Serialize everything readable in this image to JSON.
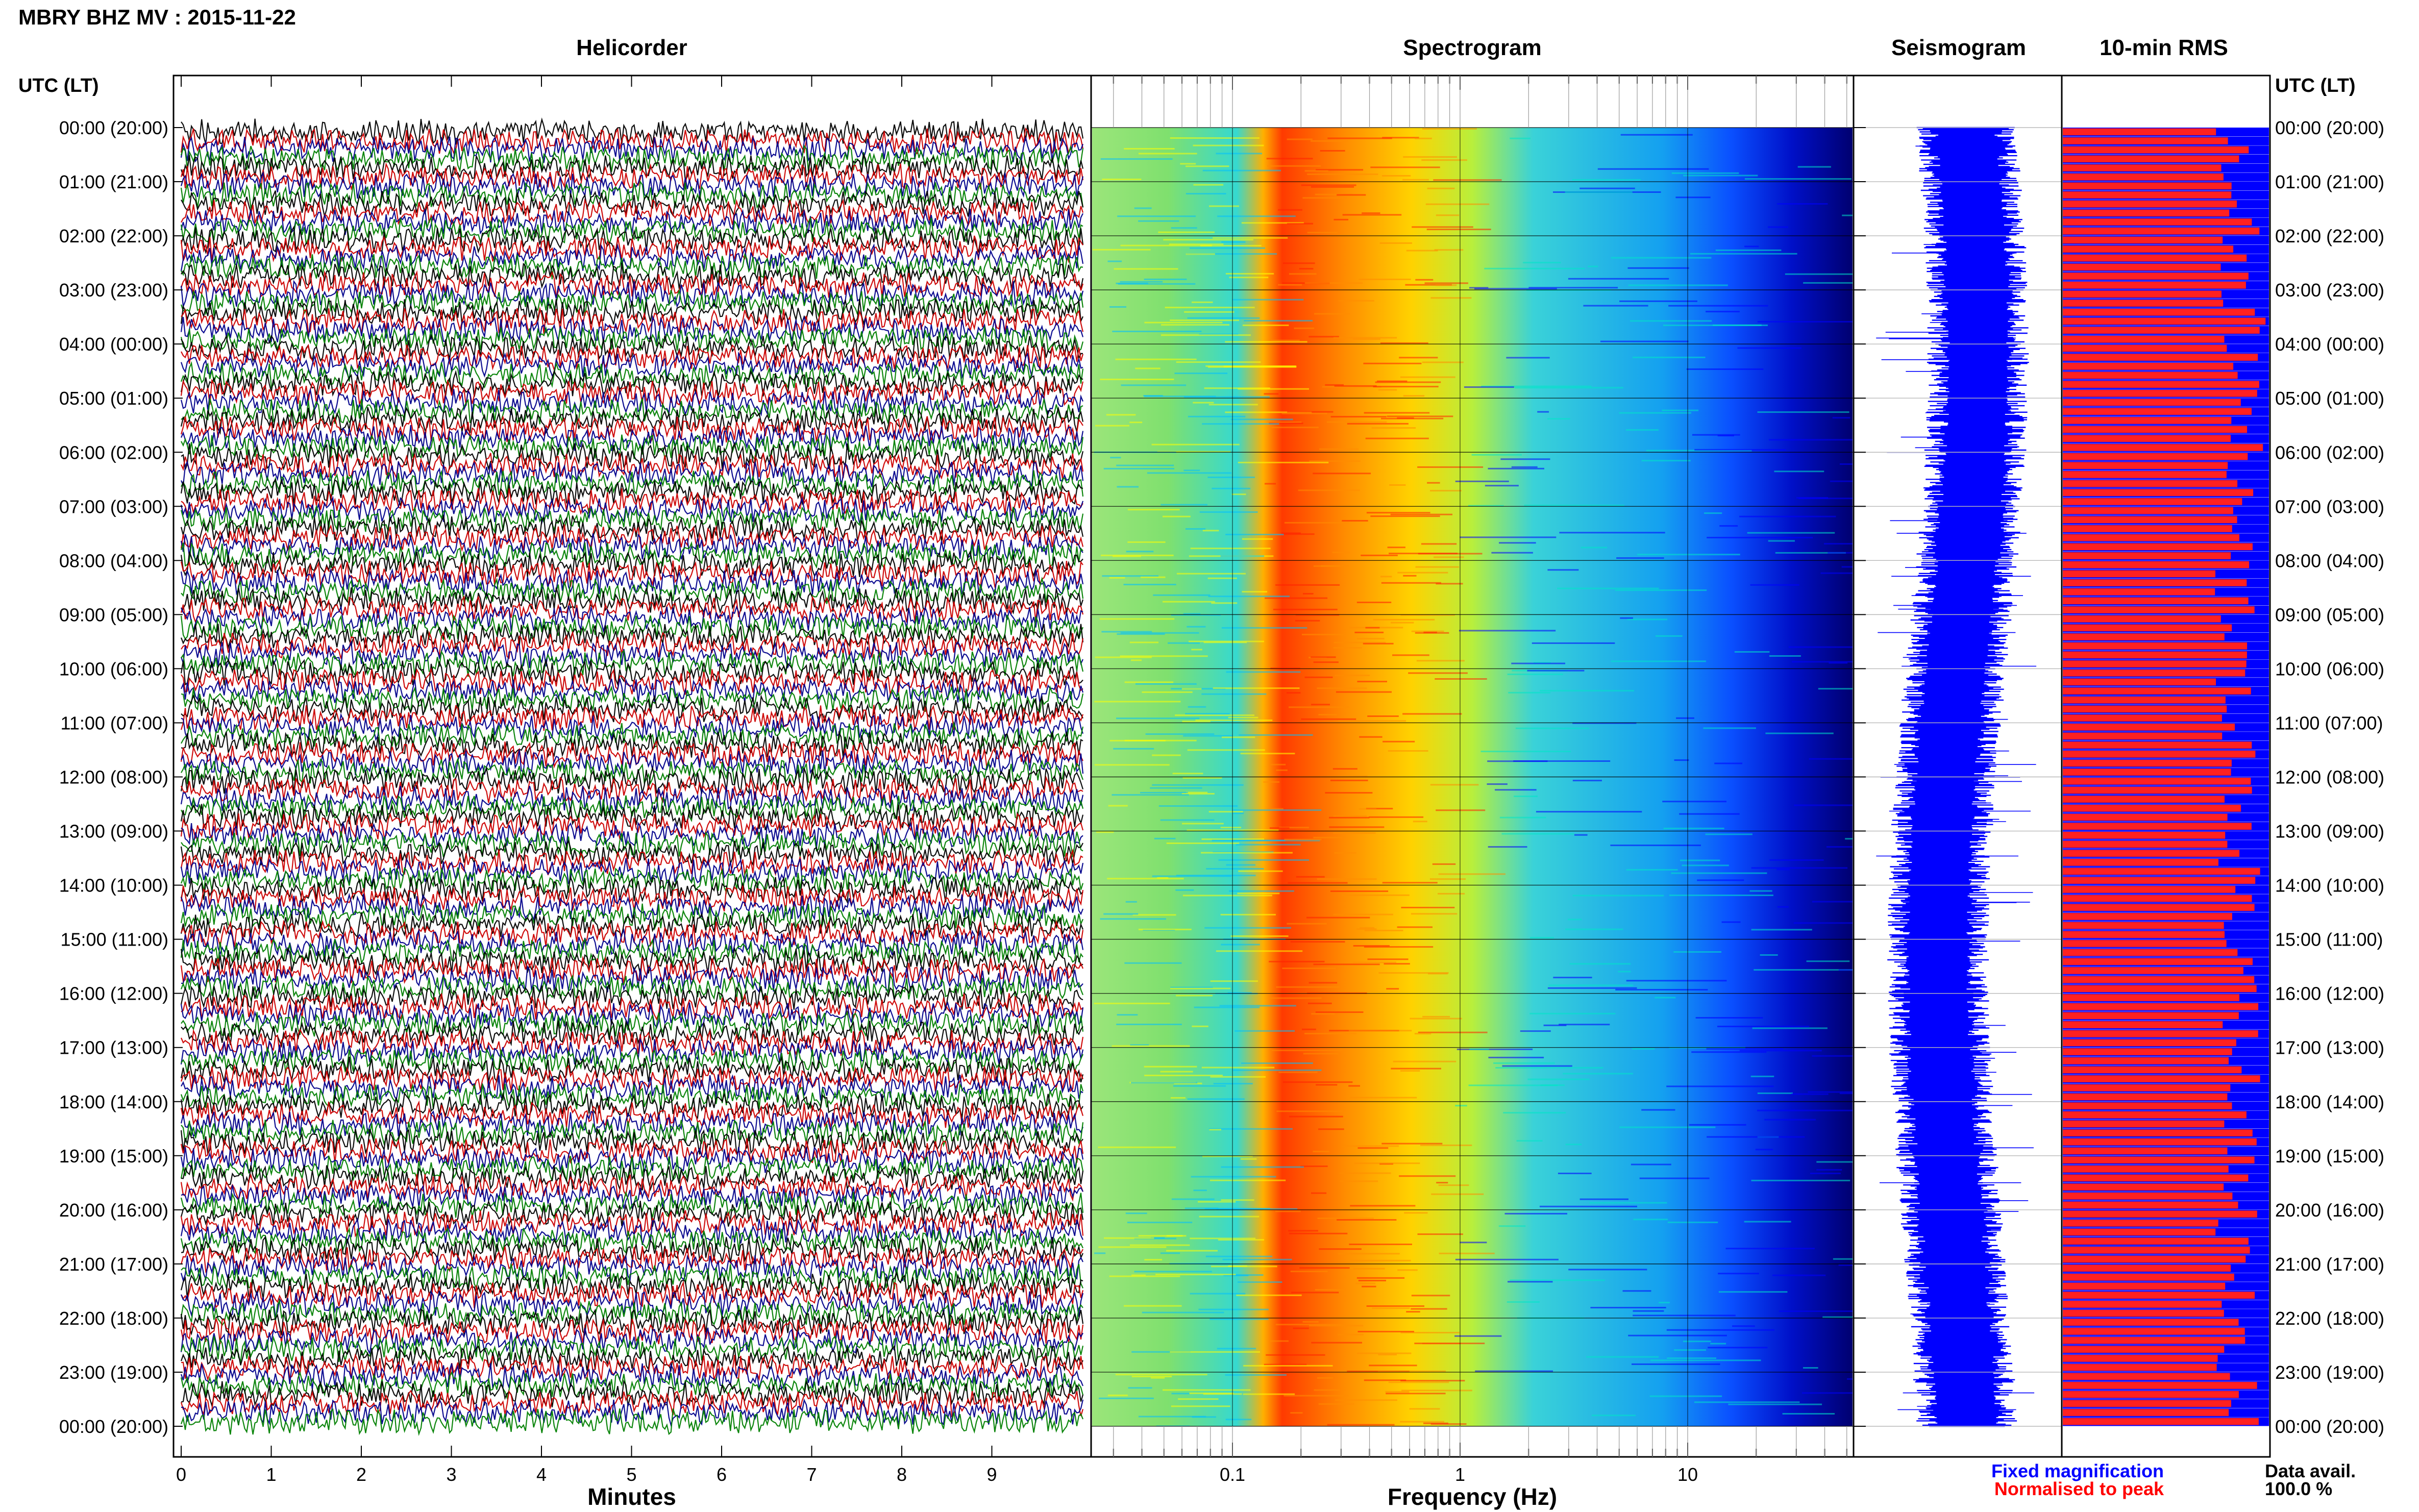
{
  "header": {
    "station_title": "MBRY BHZ MV : 2015-11-22",
    "panels": [
      "Helicorder",
      "Spectrogram",
      "Seismogram",
      "10-min RMS"
    ],
    "time_axis_label": "UTC (LT)"
  },
  "time_ticks": [
    "00:00 (20:00)",
    "01:00 (21:00)",
    "02:00 (22:00)",
    "03:00 (23:00)",
    "04:00 (00:00)",
    "05:00 (01:00)",
    "06:00 (02:00)",
    "07:00 (03:00)",
    "08:00 (04:00)",
    "09:00 (05:00)",
    "10:00 (06:00)",
    "11:00 (07:00)",
    "12:00 (08:00)",
    "13:00 (09:00)",
    "14:00 (10:00)",
    "15:00 (11:00)",
    "16:00 (12:00)",
    "17:00 (13:00)",
    "18:00 (14:00)",
    "19:00 (15:00)",
    "20:00 (16:00)",
    "21:00 (17:00)",
    "22:00 (18:00)",
    "23:00 (19:00)",
    "00:00 (20:00)"
  ],
  "helicorder": {
    "xlabel": "Minutes",
    "xticks": [
      "0",
      "1",
      "2",
      "3",
      "4",
      "5",
      "6",
      "7",
      "8",
      "9"
    ],
    "trace_colors": [
      "#000000",
      "#cc0000",
      "#00008b",
      "#008000"
    ]
  },
  "spectrogram": {
    "xlabel": "Frequency (Hz)",
    "xticks": [
      "0.1",
      "1",
      "10"
    ],
    "xscale": "log",
    "colormap": [
      "#00008b",
      "#0000ff",
      "#00bfff",
      "#00e5c8",
      "#ffff00",
      "#ff8c00",
      "#ff2000"
    ]
  },
  "seismogram": {
    "trace_color": "#0000ff"
  },
  "rms": {
    "bar_color_normalised": "#ff2020",
    "bar_color_fixed": "#0000ff"
  },
  "legend": {
    "fixed_label": "Fixed magnification",
    "fixed_color": "#0000ff",
    "normalised_label": "Normalised to peak",
    "normalised_color": "#ff0000",
    "data_avail_label": "Data avail.",
    "data_avail_value": "100.0 %"
  },
  "chart_data": [
    {
      "type": "line",
      "title": "Helicorder",
      "xlabel": "Minutes",
      "xlim": [
        0,
        10
      ],
      "ylabel": "UTC (LT)",
      "rows": 144,
      "row_interval_minutes": 10
    },
    {
      "type": "heatmap",
      "title": "Spectrogram",
      "xlabel": "Frequency (Hz)",
      "xscale": "log",
      "xlim": [
        0.03,
        50
      ],
      "peak_energy_band_hz": [
        0.15,
        0.5
      ]
    },
    {
      "type": "line",
      "title": "Seismogram",
      "note": "24-hour compressed trace"
    },
    {
      "type": "bar",
      "title": "10-min RMS",
      "bars": 144,
      "series": [
        {
          "name": "Fixed magnification"
        },
        {
          "name": "Normalised to peak"
        }
      ]
    }
  ]
}
